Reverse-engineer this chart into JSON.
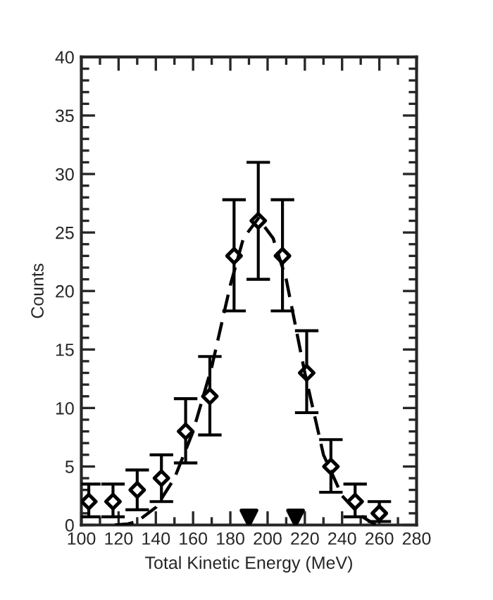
{
  "chart_data": {
    "type": "scatter",
    "xlabel": "Total Kinetic Energy (MeV)",
    "ylabel": "Counts",
    "xlim": [
      100,
      280
    ],
    "xticks": [
      100,
      120,
      140,
      160,
      180,
      200,
      220,
      240,
      260,
      280
    ],
    "ylim": [
      0,
      40
    ],
    "yticks": [
      0,
      5,
      10,
      15,
      20,
      25,
      30,
      35,
      40
    ],
    "grid": false,
    "series": [
      {
        "marker": "diamond",
        "color": "#000000",
        "x": [
          104,
          117,
          130,
          143,
          156,
          169,
          182,
          195,
          208,
          221,
          234,
          247,
          260
        ],
        "values": [
          2,
          2,
          3,
          4,
          8,
          11,
          23,
          26,
          23,
          13,
          5,
          2,
          1
        ],
        "errors": [
          [
            0.7,
            3.5
          ],
          [
            0.7,
            3.5
          ],
          [
            1.3,
            4.7
          ],
          [
            2,
            6
          ],
          [
            5.3,
            10.8
          ],
          [
            7.7,
            14.4
          ],
          [
            18.3,
            27.8
          ],
          [
            21,
            31
          ],
          [
            18.3,
            27.8
          ],
          [
            9.6,
            16.6
          ],
          [
            2.8,
            7.3
          ],
          [
            0.7,
            3.5
          ],
          [
            0.3,
            2
          ]
        ]
      },
      {
        "type": "line",
        "line_style": "dashed",
        "marker": "none",
        "color": "#000000",
        "x": [
          118,
          125,
          130,
          140,
          150,
          160,
          170,
          180,
          187,
          195,
          203,
          210,
          220,
          230,
          240,
          250,
          258
        ],
        "values": [
          0,
          0.1,
          0.3,
          1.5,
          4,
          8,
          13.5,
          20.5,
          24.5,
          26.2,
          24.5,
          21,
          13,
          6,
          2.5,
          0.8,
          0
        ]
      },
      {
        "type": "scatter",
        "marker": "triangle",
        "color": "#000000",
        "x": [
          190,
          215
        ],
        "values": [
          0.6,
          0.6
        ]
      }
    ]
  }
}
